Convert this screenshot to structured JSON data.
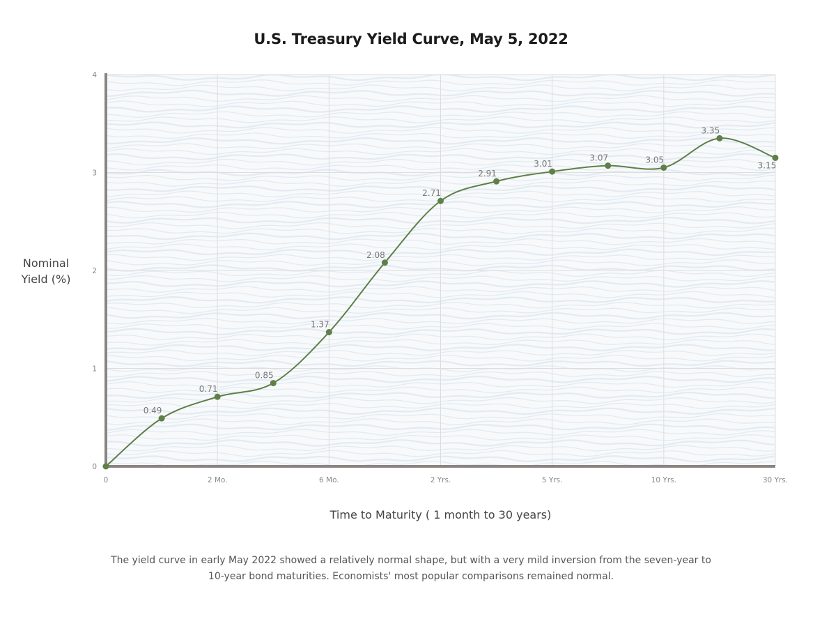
{
  "chart_data": {
    "type": "line",
    "title": "U.S. Treasury Yield Curve, May 5, 2022",
    "ylabel_lines": [
      "Nominal",
      "Yield (%)"
    ],
    "xlabel": "Time to Maturity ( 1 month to 30 years)",
    "caption_lines": [
      "The yield curve in early May 2022 showed a relatively normal shape, but with a very mild inversion from the seven-year to",
      "10-year bond maturities. Economists' most popular comparisons remained normal."
    ],
    "ylim": [
      0,
      4
    ],
    "yticks": [
      "0",
      "1",
      "2",
      "3",
      "4"
    ],
    "x_tick_labels": [
      "0",
      "2 Mo.",
      "6 Mo.",
      "2 Yrs.",
      "5 Yrs.",
      "10 Yrs.",
      "30 Yrs."
    ],
    "grid": true,
    "series": [
      {
        "values": [
          0,
          0.49,
          0.71,
          0.85,
          1.37,
          2.08,
          2.71,
          2.91,
          3.01,
          3.07,
          3.05,
          3.35,
          3.15
        ],
        "labels": [
          "",
          "0.49",
          "0.71",
          "0.85",
          "1.37",
          "2.08",
          "2.71",
          "2.91",
          "3.01",
          "3.07",
          "3.05",
          "3.35",
          "3.15"
        ]
      }
    ],
    "colors": {
      "line": "#5f7f48",
      "axis": "#8a8482",
      "grid": "#dddddd",
      "background": "#f7f9fb",
      "texture": "#e2ebf2"
    }
  }
}
